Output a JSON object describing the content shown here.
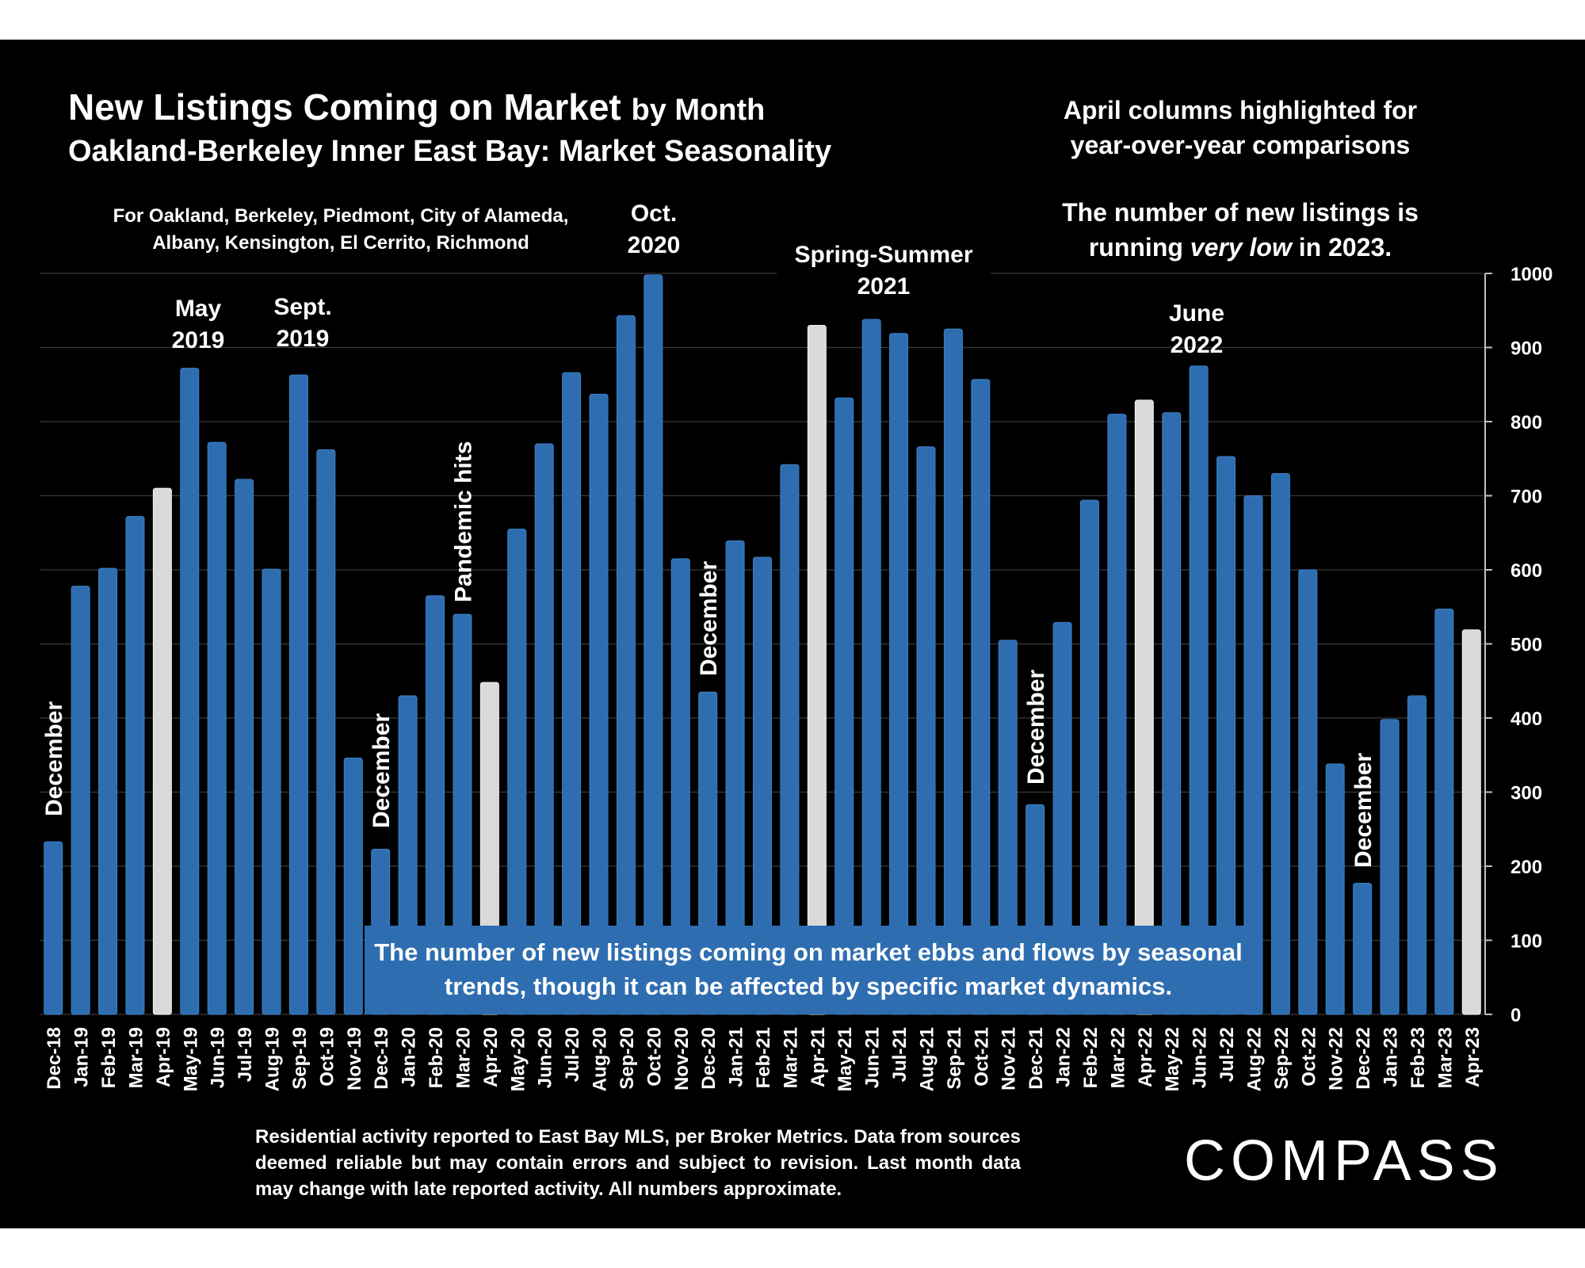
{
  "title": "New Listings Coming on Market",
  "title_suffix": "by Month",
  "subtitle": "Oakland-Berkeley Inner East Bay: Market Seasonality",
  "subtitle_note": "For Oakland, Berkeley, Piedmont, City of Alameda, Albany, Kensington, El Cerrito, Richmond",
  "right_note_1": "April columns highlighted for year-over-year comparisons",
  "right_note_2_prefix": "The number of new listings is running ",
  "right_note_2_em": "very low",
  "right_note_2_suffix": " in 2023.",
  "callout": "The number of new listings coming on market ebbs and flows by seasonal trends, though it can be affected by specific market dynamics.",
  "footnote": "Residential activity reported to East Bay MLS, per Broker Metrics. Data from sources deemed reliable but may contain errors and subject to revision. Last month data may change with late reported activity. All numbers approximate.",
  "logo": "COMPASS",
  "colors": {
    "background": "#000000",
    "bar": "#2e6db0",
    "highlight": "#d9d9d9",
    "text": "#ffffff"
  },
  "annotations": {
    "may_2019": [
      "May",
      "2019"
    ],
    "sept_2019": [
      "Sept.",
      "2019"
    ],
    "oct_2020": [
      "Oct.",
      "2020"
    ],
    "spring_summer_2021": [
      "Spring-Summer",
      "2021"
    ],
    "june_2022": [
      "June",
      "2022"
    ],
    "pandemic_hits": "Pandemic hits",
    "december": "December"
  },
  "chart_data": {
    "type": "bar",
    "categories": [
      "Dec-18",
      "Jan-19",
      "Feb-19",
      "Mar-19",
      "Apr-19",
      "May-19",
      "Jun-19",
      "Jul-19",
      "Aug-19",
      "Sep-19",
      "Oct-19",
      "Nov-19",
      "Dec-19",
      "Jan-20",
      "Feb-20",
      "Mar-20",
      "Apr-20",
      "May-20",
      "Jun-20",
      "Jul-20",
      "Aug-20",
      "Sep-20",
      "Oct-20",
      "Nov-20",
      "Dec-20",
      "Jan-21",
      "Feb-21",
      "Mar-21",
      "Apr-21",
      "May-21",
      "Jun-21",
      "Jul-21",
      "Aug-21",
      "Sep-21",
      "Oct-21",
      "Nov-21",
      "Dec-21",
      "Jan-22",
      "Feb-22",
      "Mar-22",
      "Apr-22",
      "May-22",
      "Jun-22",
      "Jul-22",
      "Aug-22",
      "Sep-22",
      "Oct-22",
      "Nov-22",
      "Dec-22",
      "Jan-23",
      "Feb-23",
      "Mar-23",
      "Apr-23"
    ],
    "values": [
      233,
      578,
      602,
      672,
      710,
      872,
      772,
      722,
      601,
      863,
      762,
      346,
      223,
      430,
      565,
      540,
      448,
      655,
      770,
      866,
      837,
      943,
      998,
      615,
      435,
      639,
      617,
      742,
      930,
      832,
      938,
      919,
      766,
      925,
      857,
      505,
      283,
      529,
      694,
      810,
      829,
      812,
      875,
      753,
      700,
      730,
      600,
      338,
      177,
      398,
      430,
      547,
      519
    ],
    "highlighted": [
      "Apr-19",
      "Apr-20",
      "Apr-21",
      "Apr-22",
      "Apr-23"
    ],
    "ylim": [
      0,
      1000
    ],
    "yticks": [
      0,
      100,
      200,
      300,
      400,
      500,
      600,
      700,
      800,
      900,
      1000
    ],
    "y_axis_side": "right",
    "grid": true
  }
}
